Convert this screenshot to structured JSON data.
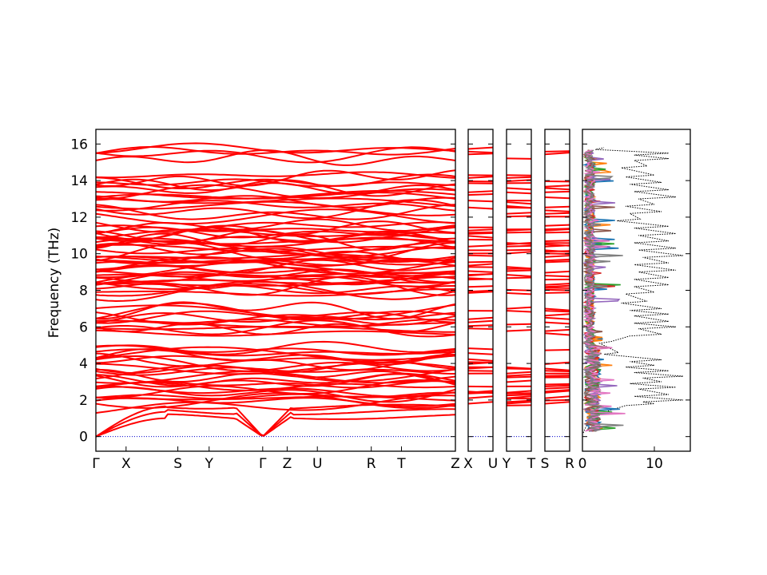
{
  "chart_data": {
    "type": "line",
    "ylabel": "Frequency (THz)",
    "ylim": [
      -0.8,
      16.8
    ],
    "yticks": [
      0,
      2,
      4,
      6,
      8,
      10,
      12,
      14,
      16
    ],
    "grid": false,
    "band_color": "#ff0000",
    "zero_line_color": "#0000cc",
    "dos_total_color": "#000000",
    "panels": [
      {
        "name": "main-path",
        "labels": [
          "Γ",
          "X",
          "S",
          "Y",
          "Γ",
          "Z",
          "U",
          "R",
          "T",
          "Z"
        ],
        "label_positions": [
          0,
          0.084,
          0.228,
          0.315,
          0.464,
          0.532,
          0.616,
          0.766,
          0.85,
          1.0
        ]
      },
      {
        "name": "X-U",
        "labels": [
          "X",
          "U"
        ],
        "label_positions": [
          0,
          1.0
        ]
      },
      {
        "name": "Y-T",
        "labels": [
          "Y",
          "T"
        ],
        "label_positions": [
          0,
          1.0
        ]
      },
      {
        "name": "S-R",
        "labels": [
          "S",
          "R"
        ],
        "label_positions": [
          0,
          1.0
        ]
      }
    ],
    "dos": {
      "xlim": [
        0,
        15
      ],
      "xticks": [
        0,
        10
      ],
      "partial_colors": [
        "#1f77b4",
        "#ff7f0e",
        "#2ca02c",
        "#d62728",
        "#9467bd",
        "#8c564b",
        "#e377c2",
        "#7f7f7f"
      ],
      "total_peaks": [
        {
          "f": 0.3,
          "v": 0.2
        },
        {
          "f": 1.2,
          "v": 2
        },
        {
          "f": 1.8,
          "v": 10
        },
        {
          "f": 2.0,
          "v": 14
        },
        {
          "f": 2.3,
          "v": 12
        },
        {
          "f": 2.7,
          "v": 13
        },
        {
          "f": 3.0,
          "v": 11
        },
        {
          "f": 3.3,
          "v": 14
        },
        {
          "f": 3.6,
          "v": 12
        },
        {
          "f": 3.9,
          "v": 10
        },
        {
          "f": 4.2,
          "v": 11
        },
        {
          "f": 4.6,
          "v": 5
        },
        {
          "f": 5.2,
          "v": 4
        },
        {
          "f": 5.6,
          "v": 11
        },
        {
          "f": 6.0,
          "v": 13
        },
        {
          "f": 6.3,
          "v": 12
        },
        {
          "f": 6.7,
          "v": 12
        },
        {
          "f": 7.0,
          "v": 11
        },
        {
          "f": 7.4,
          "v": 9
        },
        {
          "f": 7.9,
          "v": 10
        },
        {
          "f": 8.3,
          "v": 12
        },
        {
          "f": 8.7,
          "v": 12
        },
        {
          "f": 9.1,
          "v": 13
        },
        {
          "f": 9.5,
          "v": 12
        },
        {
          "f": 9.9,
          "v": 14
        },
        {
          "f": 10.3,
          "v": 13
        },
        {
          "f": 10.7,
          "v": 12
        },
        {
          "f": 11.1,
          "v": 13
        },
        {
          "f": 11.5,
          "v": 12
        },
        {
          "f": 11.9,
          "v": 8
        },
        {
          "f": 12.3,
          "v": 11
        },
        {
          "f": 12.7,
          "v": 10
        },
        {
          "f": 13.1,
          "v": 13
        },
        {
          "f": 13.5,
          "v": 12
        },
        {
          "f": 13.9,
          "v": 11
        },
        {
          "f": 14.3,
          "v": 10
        },
        {
          "f": 14.8,
          "v": 9
        },
        {
          "f": 15.2,
          "v": 12
        },
        {
          "f": 15.5,
          "v": 12
        },
        {
          "f": 15.8,
          "v": 3
        }
      ]
    }
  }
}
